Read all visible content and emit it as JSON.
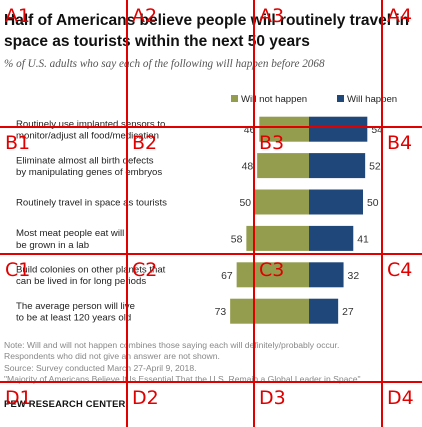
{
  "header": {
    "title": "Half of Americans believe people will routinely travel in space as tourists within the next 50 years",
    "subtitle": "% of U.S. adults who say each of the following will happen before 2068"
  },
  "colors": {
    "will_not": "#949c4e",
    "will": "#20477a"
  },
  "chart_data": {
    "type": "bar",
    "orientation": "horizontal-diverging",
    "categories": [
      "Routinely use implanted sensors to monitor/adjust all food/medication",
      "Eliminate almost all birth defects by manipulating genes of embryos",
      "Routinely travel in space as tourists",
      "Most meat people eat will be grown in a lab",
      "Build colonies on other planets that can be lived in for long periods",
      "The average person will live to be at least 120 years old"
    ],
    "category_lines": [
      [
        "Routinely use implanted sensors to",
        "monitor/adjust all food/medication"
      ],
      [
        "Eliminate almost all birth defects",
        "by manipulating genes of embryos"
      ],
      [
        "Routinely travel in space as tourists"
      ],
      [
        "Most meat people eat will",
        "be grown in a lab"
      ],
      [
        "Build colonies on other planets that",
        "can be lived in for long periods"
      ],
      [
        "The average person will live",
        "to be at least 120 years old"
      ]
    ],
    "series": [
      {
        "name": "Will not happen",
        "values": [
          46,
          48,
          50,
          58,
          67,
          73
        ]
      },
      {
        "name": "Will happen",
        "values": [
          54,
          52,
          50,
          41,
          32,
          27
        ]
      }
    ],
    "legend": "top-right"
  },
  "notes": {
    "note1": "Note: Will and will not happen combines those saying each will definitely/probably occur.",
    "note2": "Respondents who did not give an answer are not shown.",
    "source": "Source: Survey conducted March 27-April 9, 2018.",
    "report": "\"Majority of Americans Believe It Is Essential That the U.S. Remain a Global Leader in Space\""
  },
  "branding": {
    "logo": "PEW RESEARCH CENTER"
  },
  "grid_overlay": {
    "labels": [
      "A1",
      "A2",
      "A3",
      "A4",
      "B1",
      "B2",
      "B3",
      "B4",
      "C1",
      "C2",
      "C3",
      "C4",
      "D1",
      "D2",
      "D3",
      "D4"
    ]
  }
}
